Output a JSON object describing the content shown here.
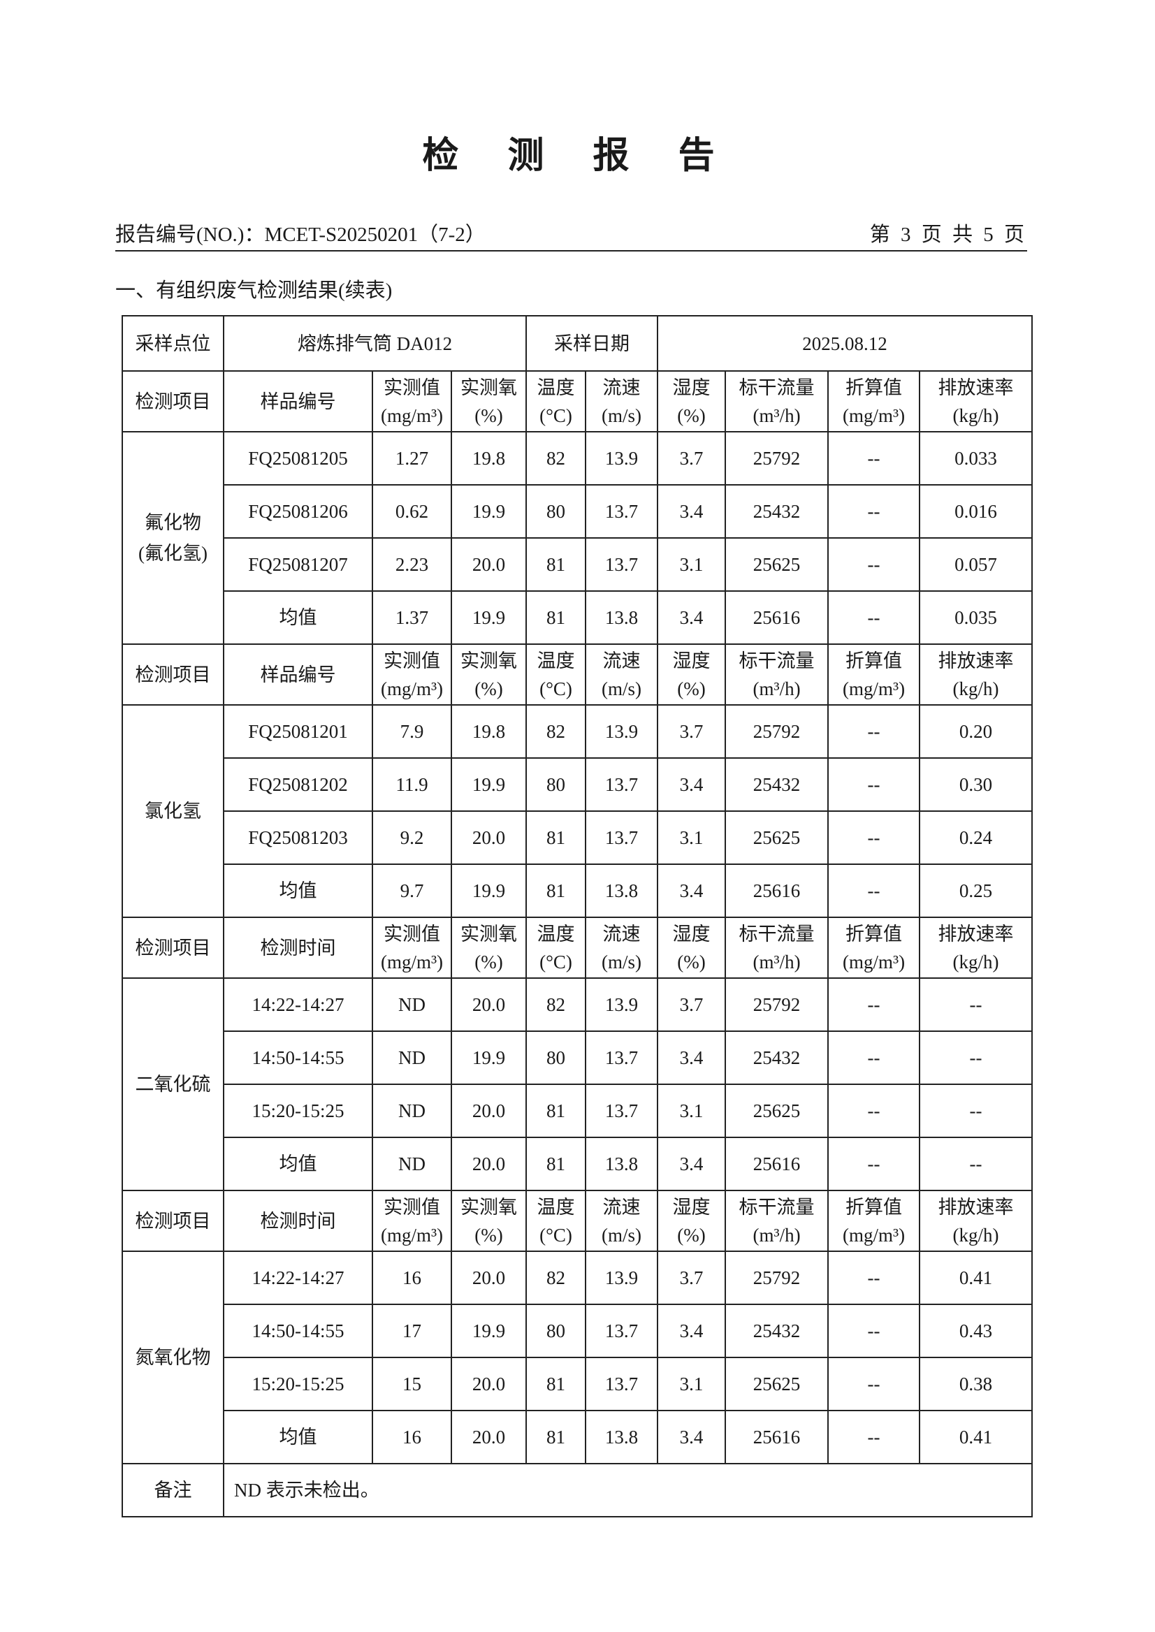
{
  "doc_title": "检 测 报 告",
  "report_no": "报告编号(NO.)：MCET-S20250201（7-2）",
  "page_info": "第 3 页 共 5 页",
  "section_title": "一、有组织废气检测结果(续表)",
  "meta": {
    "site_label": "采样点位",
    "site_value": "熔炼排气筒 DA012",
    "date_label": "采样日期",
    "date_value": "2025.08.12"
  },
  "columns": [
    [
      "实测值",
      "(mg/m³)"
    ],
    [
      "实测氧",
      "(%)"
    ],
    [
      "温度",
      "(°C)"
    ],
    [
      "流速",
      "(m/s)"
    ],
    [
      "湿度",
      "(%)"
    ],
    [
      "标干流量",
      "(m³/h)"
    ],
    [
      "折算值",
      "(mg/m³)"
    ],
    [
      "排放速率",
      "(kg/h)"
    ]
  ],
  "item_label": "检测项目",
  "blocks": [
    {
      "item": "氟化物\n(氟化氢)",
      "id_label": "样品编号",
      "rows": [
        [
          "FQ25081205",
          "1.27",
          "19.8",
          "82",
          "13.9",
          "3.7",
          "25792",
          "--",
          "0.033"
        ],
        [
          "FQ25081206",
          "0.62",
          "19.9",
          "80",
          "13.7",
          "3.4",
          "25432",
          "--",
          "0.016"
        ],
        [
          "FQ25081207",
          "2.23",
          "20.0",
          "81",
          "13.7",
          "3.1",
          "25625",
          "--",
          "0.057"
        ],
        [
          "均值",
          "1.37",
          "19.9",
          "81",
          "13.8",
          "3.4",
          "25616",
          "--",
          "0.035"
        ]
      ]
    },
    {
      "item": "氯化氢",
      "id_label": "样品编号",
      "rows": [
        [
          "FQ25081201",
          "7.9",
          "19.8",
          "82",
          "13.9",
          "3.7",
          "25792",
          "--",
          "0.20"
        ],
        [
          "FQ25081202",
          "11.9",
          "19.9",
          "80",
          "13.7",
          "3.4",
          "25432",
          "--",
          "0.30"
        ],
        [
          "FQ25081203",
          "9.2",
          "20.0",
          "81",
          "13.7",
          "3.1",
          "25625",
          "--",
          "0.24"
        ],
        [
          "均值",
          "9.7",
          "19.9",
          "81",
          "13.8",
          "3.4",
          "25616",
          "--",
          "0.25"
        ]
      ]
    },
    {
      "item": "二氧化硫",
      "id_label": "检测时间",
      "rows": [
        [
          "14:22-14:27",
          "ND",
          "20.0",
          "82",
          "13.9",
          "3.7",
          "25792",
          "--",
          "--"
        ],
        [
          "14:50-14:55",
          "ND",
          "19.9",
          "80",
          "13.7",
          "3.4",
          "25432",
          "--",
          "--"
        ],
        [
          "15:20-15:25",
          "ND",
          "20.0",
          "81",
          "13.7",
          "3.1",
          "25625",
          "--",
          "--"
        ],
        [
          "均值",
          "ND",
          "20.0",
          "81",
          "13.8",
          "3.4",
          "25616",
          "--",
          "--"
        ]
      ]
    },
    {
      "item": "氮氧化物",
      "id_label": "检测时间",
      "rows": [
        [
          "14:22-14:27",
          "16",
          "20.0",
          "82",
          "13.9",
          "3.7",
          "25792",
          "--",
          "0.41"
        ],
        [
          "14:50-14:55",
          "17",
          "19.9",
          "80",
          "13.7",
          "3.4",
          "25432",
          "--",
          "0.43"
        ],
        [
          "15:20-15:25",
          "15",
          "20.0",
          "81",
          "13.7",
          "3.1",
          "25625",
          "--",
          "0.38"
        ],
        [
          "均值",
          "16",
          "20.0",
          "81",
          "13.8",
          "3.4",
          "25616",
          "--",
          "0.41"
        ]
      ]
    }
  ],
  "remarks_label": "备注",
  "remarks_value": "ND 表示未检出。"
}
